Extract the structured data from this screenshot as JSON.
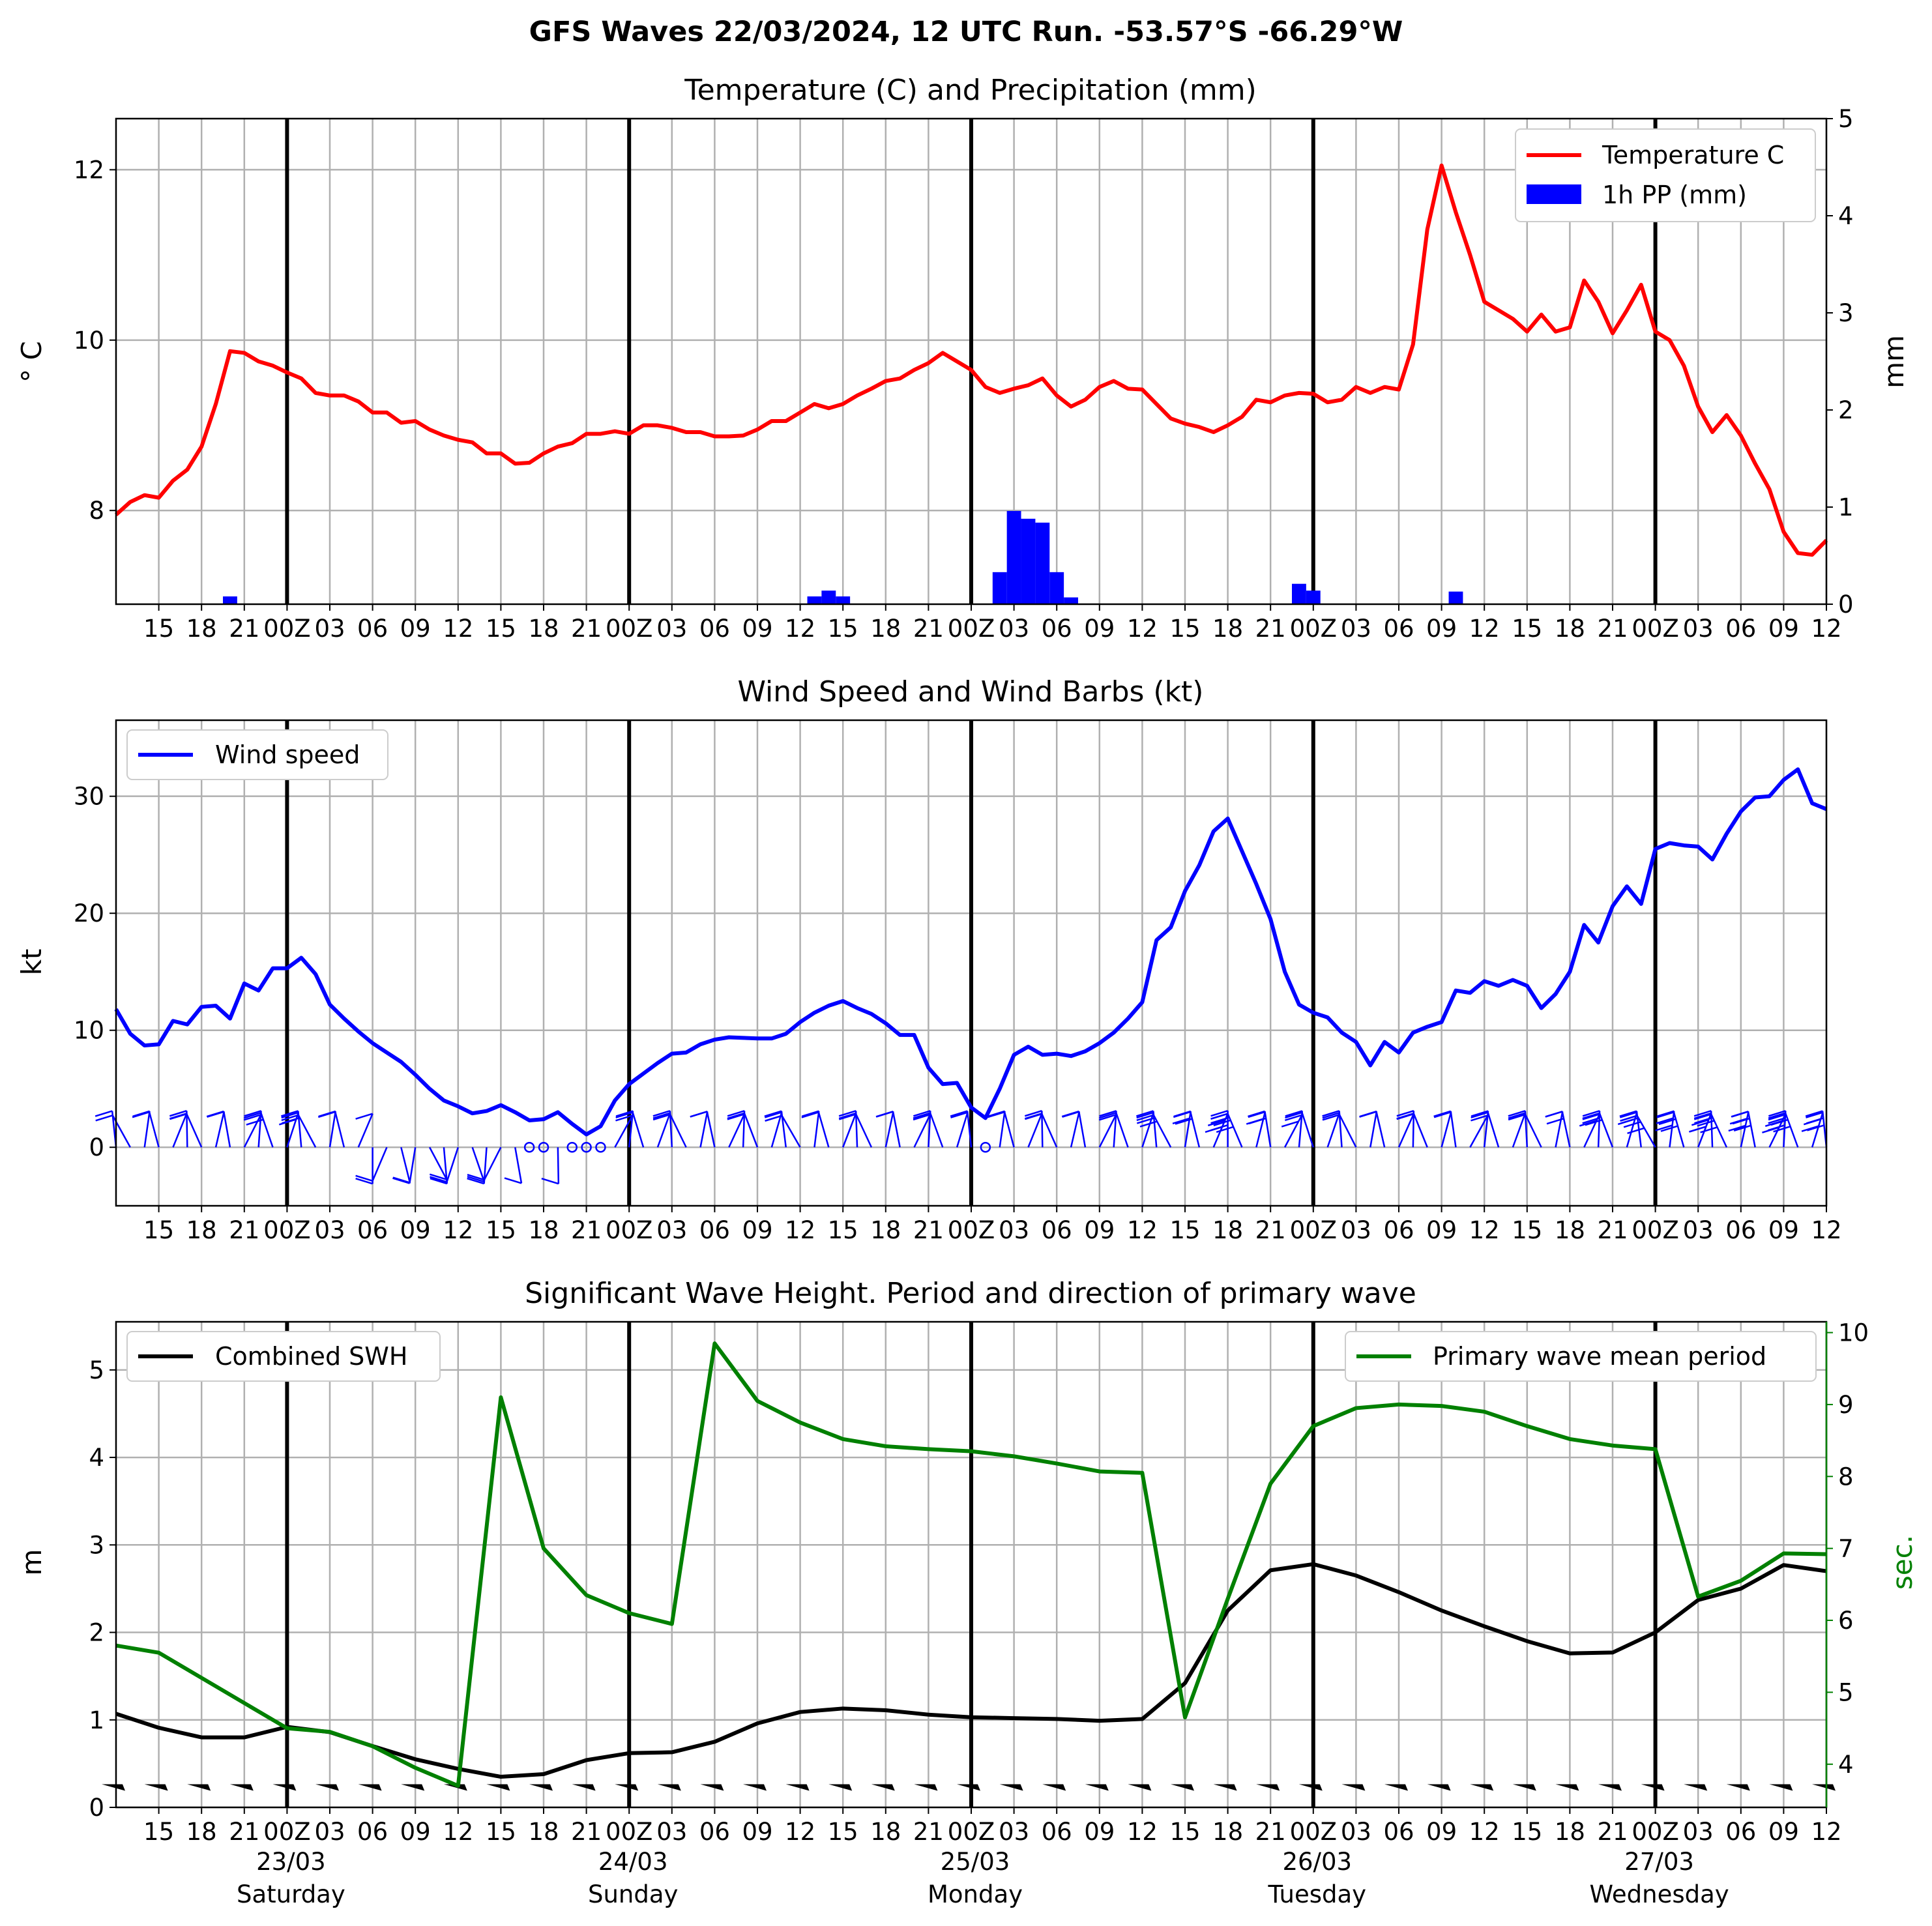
{
  "title": "GFS Waves 22/03/2024, 12 UTC Run. -53.57°S -66.29°W",
  "colors": {
    "temperature": "#ff0000",
    "precip": "#0000ff",
    "wind": "#0000ff",
    "swh": "#000000",
    "period": "#008000",
    "grid": "#b0b0b0",
    "day_line": "#000000"
  },
  "x_ticks": [
    "15",
    "18",
    "21",
    "00Z",
    "03",
    "06",
    "09",
    "12",
    "15",
    "18",
    "21",
    "00Z",
    "03",
    "06",
    "09",
    "12",
    "15",
    "18",
    "21",
    "00Z",
    "03",
    "06",
    "09",
    "12",
    "15",
    "18",
    "21",
    "00Z",
    "03",
    "06",
    "09",
    "12",
    "15",
    "18",
    "21",
    "00Z",
    "03",
    "06",
    "09",
    "12"
  ],
  "day_labels": [
    {
      "date": "23/03",
      "day": "Saturday"
    },
    {
      "date": "24/03",
      "day": "Sunday"
    },
    {
      "date": "25/03",
      "day": "Monday"
    },
    {
      "date": "26/03",
      "day": "Tuesday"
    },
    {
      "date": "27/03",
      "day": "Wednesday"
    }
  ],
  "chart_data": [
    {
      "type": "line",
      "title": "Temperature (C) and Precipitation (mm)",
      "xlabel": "",
      "ylabel": "$^\\circ$C",
      "ylabel_display": "° C",
      "ylabel_right": "mm",
      "x_range_hours": [
        12,
        132
      ],
      "ylim": [
        6.9,
        12.6
      ],
      "ylim_right": [
        0,
        5
      ],
      "yticks": [
        "8",
        "10",
        "12"
      ],
      "yticks_right": [
        "0",
        "1",
        "2",
        "3",
        "4",
        "5"
      ],
      "grid": true,
      "legend": "top-right",
      "series": [
        {
          "name": "Temperature C",
          "x_hours": [
            12,
            13,
            14,
            15,
            16,
            17,
            18,
            19,
            20,
            21,
            22,
            23,
            24,
            25,
            26,
            27,
            28,
            29,
            30,
            31,
            32,
            33,
            34,
            35,
            36,
            37,
            38,
            39,
            40,
            41,
            42,
            43,
            44,
            45,
            46,
            47,
            48,
            49,
            50,
            51,
            52,
            53,
            54,
            55,
            56,
            57,
            58,
            59,
            60,
            61,
            62,
            63,
            64,
            65,
            66,
            67,
            68,
            69,
            70,
            71,
            72,
            73,
            74,
            75,
            76,
            77,
            78,
            79,
            80,
            81,
            82,
            83,
            84,
            85,
            86,
            87,
            88,
            89,
            90,
            91,
            92,
            93,
            94,
            95,
            96,
            97,
            98,
            99,
            100,
            101,
            102,
            103,
            104,
            105,
            106,
            107,
            108,
            109,
            110,
            111,
            112,
            113,
            114,
            115,
            116,
            117,
            118,
            119,
            120,
            121,
            122,
            123,
            124,
            125,
            126,
            127,
            128,
            129,
            130,
            131,
            132
          ],
          "values": [
            7.95,
            8.1,
            8.18,
            8.15,
            8.35,
            8.48,
            8.75,
            9.25,
            9.87,
            9.85,
            9.75,
            9.7,
            9.62,
            9.55,
            9.38,
            9.35,
            9.35,
            9.28,
            9.15,
            9.15,
            9.03,
            9.05,
            8.95,
            8.88,
            8.83,
            8.8,
            8.67,
            8.67,
            8.55,
            8.56,
            8.67,
            8.75,
            8.79,
            8.9,
            8.9,
            8.93,
            8.9,
            9.0,
            9.0,
            8.97,
            8.92,
            8.92,
            8.87,
            8.87,
            8.88,
            8.95,
            9.05,
            9.05,
            9.15,
            9.25,
            9.2,
            9.25,
            9.35,
            9.43,
            9.52,
            9.55,
            9.65,
            9.73,
            9.85,
            9.75,
            9.65,
            9.45,
            9.38,
            9.43,
            9.47,
            9.55,
            9.35,
            9.22,
            9.3,
            9.45,
            9.52,
            9.43,
            9.42,
            9.25,
            9.08,
            9.02,
            8.98,
            8.92,
            9.0,
            9.1,
            9.3,
            9.27,
            9.35,
            9.38,
            9.37,
            9.27,
            9.3,
            9.45,
            9.38,
            9.45,
            9.42,
            9.95,
            11.3,
            12.05,
            11.5,
            11.0,
            10.45,
            10.35,
            10.25,
            10.1,
            10.3,
            10.1,
            10.15,
            10.7,
            10.45,
            10.08,
            10.35,
            10.65,
            10.1,
            10.0,
            9.7,
            9.22,
            8.92,
            9.12,
            8.88,
            8.55,
            8.25,
            7.75,
            7.5,
            7.48,
            7.65
          ]
        },
        {
          "name": "1h PP (mm)",
          "type": "bar",
          "x_hours": [
            20,
            61,
            62,
            63,
            74,
            75,
            76,
            77,
            78,
            79,
            80,
            95,
            96,
            106
          ],
          "values": [
            0.08,
            0.08,
            0.14,
            0.08,
            0.33,
            0.96,
            0.88,
            0.84,
            0.33,
            0.07,
            0,
            0.21,
            0.14,
            0.13
          ]
        }
      ]
    },
    {
      "type": "line",
      "title": "Wind Speed and Wind Barbs (kt)",
      "xlabel": "",
      "ylabel": "kt",
      "x_range_hours": [
        12,
        132
      ],
      "ylim": [
        -5,
        36.5
      ],
      "yticks": [
        "0",
        "10",
        "20",
        "30"
      ],
      "grid": true,
      "legend": "top-left",
      "series": [
        {
          "name": "Wind speed",
          "x_hours": [
            12,
            13,
            14,
            15,
            16,
            17,
            18,
            19,
            20,
            21,
            22,
            23,
            24,
            25,
            26,
            27,
            28,
            29,
            30,
            31,
            32,
            33,
            34,
            35,
            36,
            37,
            38,
            39,
            40,
            41,
            42,
            43,
            44,
            45,
            46,
            47,
            48,
            49,
            50,
            51,
            52,
            53,
            54,
            55,
            56,
            57,
            58,
            59,
            60,
            61,
            62,
            63,
            64,
            65,
            66,
            67,
            68,
            69,
            70,
            71,
            72,
            73,
            74,
            75,
            76,
            77,
            78,
            79,
            80,
            81,
            82,
            83,
            84,
            85,
            86,
            87,
            88,
            89,
            90,
            91,
            92,
            93,
            94,
            95,
            96,
            97,
            98,
            99,
            100,
            101,
            102,
            103,
            104,
            105,
            106,
            107,
            108,
            109,
            110,
            111,
            112,
            113,
            114,
            115,
            116,
            117,
            118,
            119,
            120,
            121,
            122,
            123,
            124,
            125,
            126,
            127,
            128,
            129,
            130,
            131,
            132
          ],
          "values": [
            11.8,
            9.7,
            8.7,
            8.8,
            10.8,
            10.5,
            12.0,
            12.1,
            11.0,
            14.0,
            13.4,
            15.3,
            15.3,
            16.2,
            14.8,
            12.2,
            11.0,
            9.9,
            8.9,
            8.1,
            7.3,
            6.2,
            5.0,
            4.0,
            3.5,
            2.9,
            3.1,
            3.6,
            3.0,
            2.3,
            2.4,
            3.0,
            2.0,
            1.1,
            1.8,
            4.0,
            5.4,
            6.3,
            7.2,
            8.0,
            8.1,
            8.8,
            9.2,
            9.4,
            9.35,
            9.3,
            9.3,
            9.7,
            10.7,
            11.5,
            12.1,
            12.5,
            11.9,
            11.4,
            10.6,
            9.6,
            9.6,
            6.8,
            5.4,
            5.5,
            3.4,
            2.5,
            5.0,
            7.9,
            8.6,
            7.9,
            8.0,
            7.8,
            8.2,
            8.9,
            9.8,
            11.0,
            12.4,
            17.7,
            18.8,
            21.9,
            24.1,
            27.0,
            28.1,
            25.3,
            22.5,
            19.5,
            15.0,
            12.2,
            11.5,
            11.1,
            9.8,
            9.0,
            7.0,
            9.0,
            8.1,
            9.8,
            10.3,
            10.7,
            13.4,
            13.2,
            14.2,
            13.8,
            14.3,
            13.8,
            11.9,
            13.1,
            15.0,
            19.0,
            17.5,
            20.6,
            22.3,
            20.8,
            25.5,
            26.0,
            25.8,
            25.7,
            24.6,
            26.8,
            28.7,
            29.9,
            30.0,
            31.4,
            32.3,
            29.4,
            28.9
          ]
        }
      ],
      "barbs": "wind barbs along y = 0 (direction and speed, hourly)"
    },
    {
      "type": "line",
      "title": "Significant Wave Height. Period and direction of primary wave",
      "xlabel": "",
      "ylabel": "m",
      "ylabel_right": "sec.",
      "x_range_hours": [
        12,
        132
      ],
      "ylim": [
        0,
        5.55
      ],
      "ylim_right": [
        3.4,
        10.15
      ],
      "yticks": [
        "0",
        "1",
        "2",
        "3",
        "4",
        "5"
      ],
      "yticks_right": [
        "4",
        "5",
        "6",
        "7",
        "8",
        "9",
        "10"
      ],
      "grid": true,
      "legend": "top-left / top-right",
      "series": [
        {
          "name": "Combined SWH",
          "x_hours": [
            12,
            15,
            18,
            21,
            24,
            27,
            30,
            33,
            36,
            39,
            42,
            45,
            48,
            51,
            54,
            57,
            60,
            63,
            66,
            69,
            72,
            75,
            78,
            81,
            84,
            87,
            90,
            93,
            96,
            99,
            102,
            105,
            108,
            111,
            114,
            117,
            120,
            123,
            126,
            129,
            132
          ],
          "values": [
            1.07,
            0.91,
            0.8,
            0.8,
            0.92,
            0.86,
            0.7,
            0.55,
            0.44,
            0.35,
            0.38,
            0.54,
            0.62,
            0.63,
            0.75,
            0.96,
            1.09,
            1.13,
            1.11,
            1.06,
            1.03,
            1.02,
            1.01,
            0.99,
            1.01,
            1.42,
            2.25,
            2.71,
            2.78,
            2.65,
            2.46,
            2.25,
            2.07,
            1.9,
            1.76,
            1.77,
            2.0,
            2.37,
            2.5,
            2.77,
            2.7
          ]
        },
        {
          "name": "Primary wave mean period",
          "x_hours": [
            12,
            15,
            18,
            21,
            24,
            27,
            30,
            33,
            36,
            39,
            42,
            45,
            48,
            51,
            54,
            57,
            60,
            63,
            66,
            69,
            72,
            75,
            78,
            81,
            84,
            87,
            90,
            93,
            96,
            99,
            102,
            105,
            108,
            111,
            114,
            117,
            120,
            123,
            126,
            129,
            132
          ],
          "values": [
            5.65,
            5.55,
            5.2,
            4.85,
            4.5,
            4.45,
            4.25,
            3.95,
            3.7,
            9.1,
            7.0,
            6.35,
            6.1,
            5.95,
            9.85,
            9.05,
            8.75,
            8.52,
            8.42,
            8.38,
            8.35,
            8.28,
            8.18,
            8.07,
            8.05,
            4.65,
            6.3,
            7.9,
            8.7,
            8.95,
            9.0,
            8.98,
            8.9,
            8.7,
            8.52,
            8.43,
            8.38,
            6.33,
            6.55,
            6.93,
            6.92
          ]
        }
      ],
      "arrows": "primary wave direction arrows at y ≈ 0.25 m every 3 h"
    }
  ]
}
